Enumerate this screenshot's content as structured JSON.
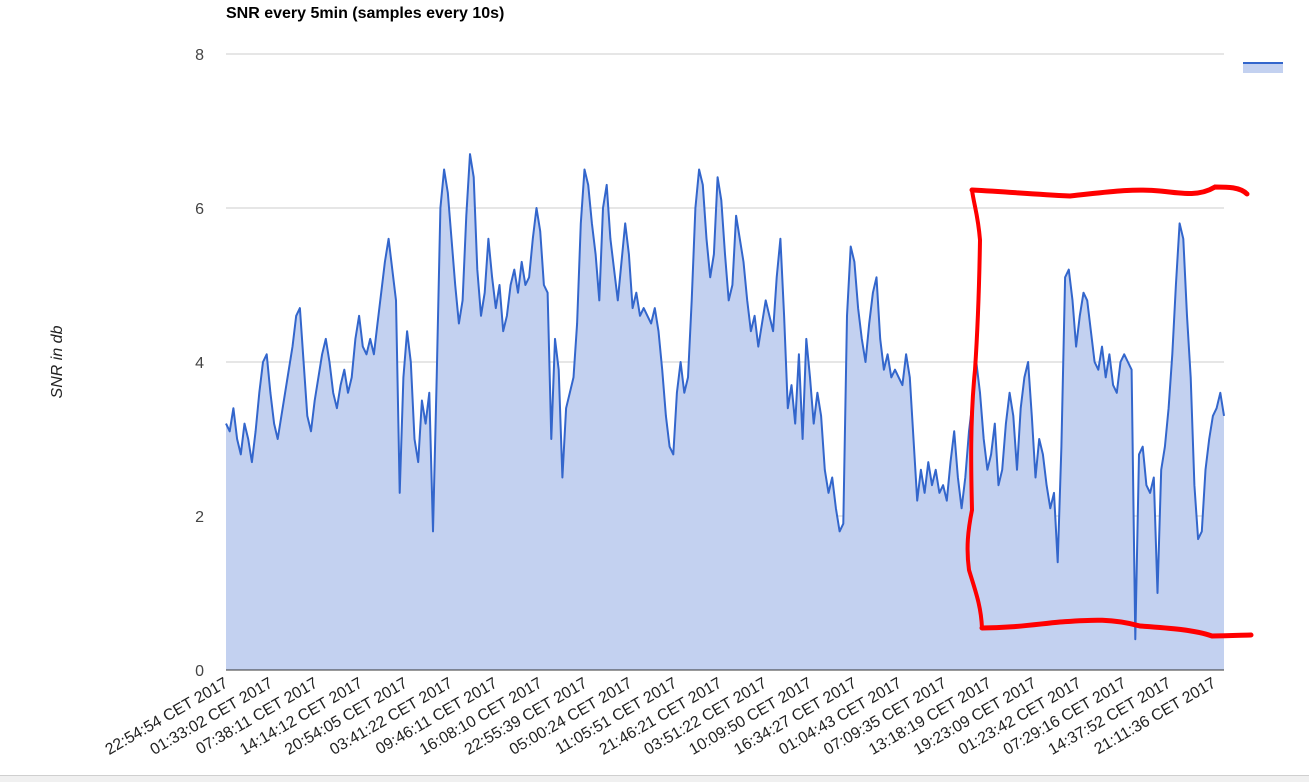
{
  "chart_data": {
    "type": "area",
    "title": "SNR every 5min (samples every 10s)",
    "ylabel": "SNR in db",
    "xlabel": "",
    "ylim": [
      0,
      8
    ],
    "y_ticks": [
      0,
      2,
      4,
      6,
      8
    ],
    "grid": true,
    "legend": {
      "position": "top-right",
      "entries": [
        ""
      ]
    },
    "colors": {
      "line": "#3366cc",
      "fill": "#c3d1f0",
      "annotation": "#ff0000",
      "grid": "#cccccc",
      "baseline": "#333333"
    },
    "x_tick_labels": [
      "22:54:54 CET 2017",
      "01:33:02 CET 2017",
      "07:38:11 CET 2017",
      "14:14:12 CET 2017",
      "20:54:05 CET 2017",
      "03:41:22 CET 2017",
      "09:46:11 CET 2017",
      "16:08:10 CET 2017",
      "22:55:39 CET 2017",
      "05:00:24 CET 2017",
      "11:05:51 CET 2017",
      "21:46:21 CET 2017",
      "03:51:22 CET 2017",
      "10:09:50 CET 2017",
      "16:34:27 CET 2017",
      "01:04:43 CET 2017",
      "07:09:35 CET 2017",
      "13:18:19 CET 2017",
      "19:23:09 CET 2017",
      "01:23:42 CET 2017",
      "07:29:16 CET 2017",
      "14:37:52 CET 2017",
      "21:11:36 CET 2017"
    ],
    "series": [
      {
        "values": [
          3.2,
          3.1,
          3.4,
          3.0,
          2.8,
          3.2,
          3.0,
          2.7,
          3.1,
          3.6,
          4.0,
          4.1,
          3.6,
          3.2,
          3.0,
          3.3,
          3.6,
          3.9,
          4.2,
          4.6,
          4.7,
          4.0,
          3.3,
          3.1,
          3.5,
          3.8,
          4.1,
          4.3,
          4.0,
          3.6,
          3.4,
          3.7,
          3.9,
          3.6,
          3.8,
          4.3,
          4.6,
          4.2,
          4.1,
          4.3,
          4.1,
          4.5,
          4.9,
          5.3,
          5.6,
          5.2,
          4.8,
          2.3,
          3.8,
          4.4,
          4.0,
          3.0,
          2.7,
          3.5,
          3.2,
          3.6,
          1.8,
          3.8,
          6.0,
          6.5,
          6.2,
          5.6,
          5.0,
          4.5,
          4.8,
          5.9,
          6.7,
          6.4,
          5.2,
          4.6,
          4.9,
          5.6,
          5.1,
          4.7,
          5.0,
          4.4,
          4.6,
          5.0,
          5.2,
          4.9,
          5.3,
          5.0,
          5.1,
          5.6,
          6.0,
          5.7,
          5.0,
          4.9,
          3.0,
          4.3,
          3.9,
          2.5,
          3.4,
          3.6,
          3.8,
          4.5,
          5.8,
          6.5,
          6.3,
          5.8,
          5.4,
          4.8,
          6.0,
          6.3,
          5.6,
          5.2,
          4.8,
          5.3,
          5.8,
          5.4,
          4.7,
          4.9,
          4.6,
          4.7,
          4.6,
          4.5,
          4.7,
          4.4,
          3.9,
          3.3,
          2.9,
          2.8,
          3.6,
          4.0,
          3.6,
          3.8,
          4.8,
          6.0,
          6.5,
          6.3,
          5.6,
          5.1,
          5.4,
          6.4,
          6.1,
          5.4,
          4.8,
          5.0,
          5.9,
          5.6,
          5.3,
          4.8,
          4.4,
          4.6,
          4.2,
          4.5,
          4.8,
          4.6,
          4.4,
          5.1,
          5.6,
          4.6,
          3.4,
          3.7,
          3.2,
          4.1,
          3.0,
          4.3,
          3.8,
          3.2,
          3.6,
          3.3,
          2.6,
          2.3,
          2.5,
          2.1,
          1.8,
          1.9,
          4.6,
          5.5,
          5.3,
          4.7,
          4.3,
          4.0,
          4.5,
          4.9,
          5.1,
          4.3,
          3.9,
          4.1,
          3.8,
          3.9,
          3.8,
          3.7,
          4.1,
          3.8,
          3.0,
          2.2,
          2.6,
          2.3,
          2.7,
          2.4,
          2.6,
          2.3,
          2.4,
          2.2,
          2.7,
          3.1,
          2.5,
          2.1,
          2.5,
          3.1,
          3.5,
          4.0,
          3.6,
          3.0,
          2.6,
          2.8,
          3.2,
          2.4,
          2.6,
          3.2,
          3.6,
          3.3,
          2.6,
          3.4,
          3.8,
          4.0,
          3.3,
          2.5,
          3.0,
          2.8,
          2.4,
          2.1,
          2.3,
          1.4,
          2.9,
          5.1,
          5.2,
          4.8,
          4.2,
          4.6,
          4.9,
          4.8,
          4.4,
          4.0,
          3.9,
          4.2,
          3.8,
          4.1,
          3.7,
          3.6,
          4.0,
          4.1,
          4.0,
          3.9,
          0.4,
          2.8,
          2.9,
          2.4,
          2.3,
          2.5,
          1.0,
          2.6,
          2.9,
          3.4,
          4.1,
          5.0,
          5.8,
          5.6,
          4.6,
          3.8,
          2.4,
          1.7,
          1.8,
          2.6,
          3.0,
          3.3,
          3.4,
          3.6,
          3.3
        ]
      }
    ]
  }
}
